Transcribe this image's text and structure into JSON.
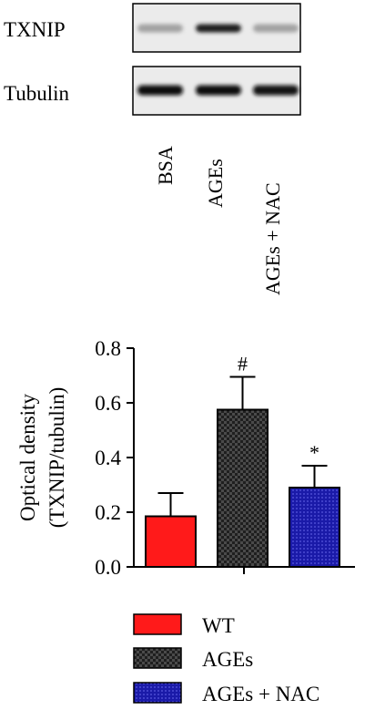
{
  "blot": {
    "rows": [
      {
        "label": "TXNIP",
        "bands": [
          0.55,
          1.0,
          0.55
        ]
      },
      {
        "label": "Tubulin",
        "bands": [
          1.0,
          1.0,
          0.95
        ]
      }
    ],
    "lanes": [
      "BSA",
      "AGEs",
      "AGEs + NAC"
    ]
  },
  "chart_data": {
    "type": "bar",
    "ylabel_line1": "Optical density",
    "ylabel_line2": "(TXNIP/tubulin)",
    "ylim": [
      0,
      0.8
    ],
    "yticks": [
      "0.0",
      "0.2",
      "0.4",
      "0.6",
      "0.8"
    ],
    "categories": [
      "WT",
      "AGEs",
      "AGEs + NAC"
    ],
    "values": [
      0.185,
      0.575,
      0.29
    ],
    "errors": [
      0.085,
      0.12,
      0.08
    ],
    "annotations": [
      "",
      "#",
      "*"
    ],
    "colors": [
      "#ff1a1a",
      "#1f1f1f",
      "#1a1aa8"
    ],
    "legend": [
      "WT",
      "AGEs",
      "AGEs + NAC"
    ],
    "legend_position": "bottom"
  }
}
